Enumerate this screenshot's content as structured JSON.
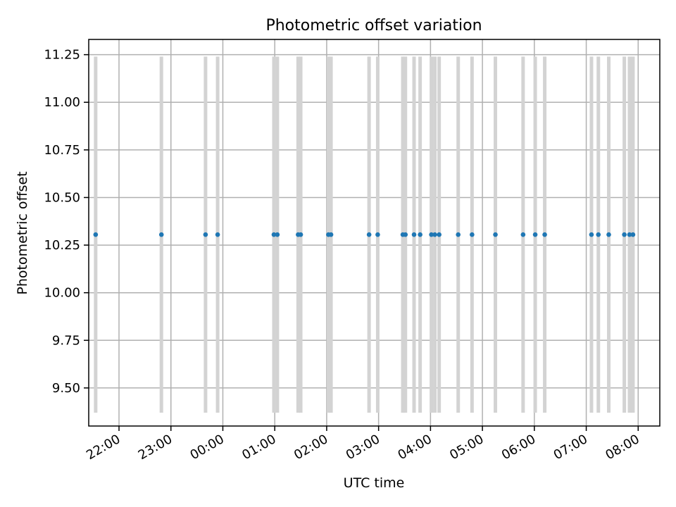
{
  "chart_data": {
    "type": "scatter",
    "title": "Photometric offset variation",
    "xlabel": "UTC time",
    "ylabel": "Photometric offset",
    "x_unit": "hours_utc",
    "xlim": [
      "21:25",
      "08:25"
    ],
    "ylim": [
      9.3,
      11.33
    ],
    "x_ticks": [
      "22:00",
      "23:00",
      "00:00",
      "01:00",
      "02:00",
      "03:00",
      "04:00",
      "05:00",
      "06:00",
      "07:00",
      "08:00"
    ],
    "y_ticks": [
      "9.50",
      "9.75",
      "10.00",
      "10.25",
      "10.50",
      "10.75",
      "11.00",
      "11.25"
    ],
    "grid": true,
    "colors": {
      "points": "#1f77b4",
      "error_bars": "#d3d3d3",
      "grid": "#b0b0b0"
    },
    "points": [
      {
        "x": "21:33",
        "y": 10.305,
        "ylow": 9.37,
        "yhigh": 11.24
      },
      {
        "x": "22:49",
        "y": 10.305,
        "ylow": 9.37,
        "yhigh": 11.24
      },
      {
        "x": "23:40",
        "y": 10.305,
        "ylow": 9.37,
        "yhigh": 11.24
      },
      {
        "x": "23:54",
        "y": 10.305,
        "ylow": 9.37,
        "yhigh": 11.24
      },
      {
        "x": "00:59",
        "y": 10.305,
        "ylow": 9.37,
        "yhigh": 11.24
      },
      {
        "x": "01:03",
        "y": 10.305,
        "ylow": 9.37,
        "yhigh": 11.24
      },
      {
        "x": "01:27",
        "y": 10.305,
        "ylow": 9.37,
        "yhigh": 11.24
      },
      {
        "x": "01:30",
        "y": 10.305,
        "ylow": 9.37,
        "yhigh": 11.24
      },
      {
        "x": "02:02",
        "y": 10.305,
        "ylow": 9.37,
        "yhigh": 11.24
      },
      {
        "x": "02:05",
        "y": 10.305,
        "ylow": 9.37,
        "yhigh": 11.24
      },
      {
        "x": "02:49",
        "y": 10.305,
        "ylow": 9.37,
        "yhigh": 11.24
      },
      {
        "x": "02:59",
        "y": 10.305,
        "ylow": 9.37,
        "yhigh": 11.24
      },
      {
        "x": "03:28",
        "y": 10.305,
        "ylow": 9.37,
        "yhigh": 11.24
      },
      {
        "x": "03:31",
        "y": 10.305,
        "ylow": 9.37,
        "yhigh": 11.24
      },
      {
        "x": "03:41",
        "y": 10.305,
        "ylow": 9.37,
        "yhigh": 11.24
      },
      {
        "x": "03:48",
        "y": 10.305,
        "ylow": 9.37,
        "yhigh": 11.24
      },
      {
        "x": "04:01",
        "y": 10.305,
        "ylow": 9.37,
        "yhigh": 11.24
      },
      {
        "x": "04:05",
        "y": 10.305,
        "ylow": 9.37,
        "yhigh": 11.24
      },
      {
        "x": "04:10",
        "y": 10.305,
        "ylow": 9.37,
        "yhigh": 11.24
      },
      {
        "x": "04:32",
        "y": 10.305,
        "ylow": 9.37,
        "yhigh": 11.24
      },
      {
        "x": "04:48",
        "y": 10.305,
        "ylow": 9.37,
        "yhigh": 11.24
      },
      {
        "x": "05:15",
        "y": 10.305,
        "ylow": 9.37,
        "yhigh": 11.24
      },
      {
        "x": "05:47",
        "y": 10.305,
        "ylow": 9.37,
        "yhigh": 11.24
      },
      {
        "x": "06:01",
        "y": 10.305,
        "ylow": 9.37,
        "yhigh": 11.24
      },
      {
        "x": "06:12",
        "y": 10.305,
        "ylow": 9.37,
        "yhigh": 11.24
      },
      {
        "x": "07:06",
        "y": 10.305,
        "ylow": 9.37,
        "yhigh": 11.24
      },
      {
        "x": "07:14",
        "y": 10.305,
        "ylow": 9.37,
        "yhigh": 11.24
      },
      {
        "x": "07:26",
        "y": 10.305,
        "ylow": 9.37,
        "yhigh": 11.24
      },
      {
        "x": "07:44",
        "y": 10.305,
        "ylow": 9.37,
        "yhigh": 11.24
      },
      {
        "x": "07:50",
        "y": 10.305,
        "ylow": 9.37,
        "yhigh": 11.24
      },
      {
        "x": "07:54",
        "y": 10.305,
        "ylow": 9.37,
        "yhigh": 11.24
      }
    ]
  }
}
